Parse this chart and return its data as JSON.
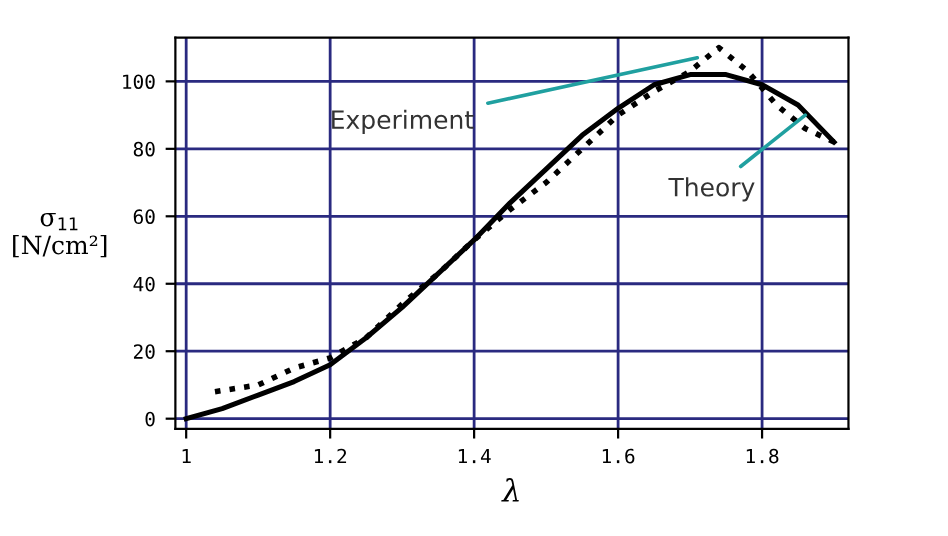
{
  "chart_data": {
    "type": "line",
    "xlabel": "λ",
    "ylabel": "σ$_{11}$\n[N/cm²]",
    "xlim": [
      0.985,
      1.92
    ],
    "ylim": [
      -3,
      113
    ],
    "xticks": [
      1,
      1.2,
      1.4,
      1.6,
      1.8
    ],
    "yticks": [
      0,
      20,
      40,
      60,
      80,
      100
    ],
    "grid": true,
    "series": [
      {
        "color": "#000000",
        "line_style": "solid",
        "x": [
          1,
          1.05,
          1.1,
          1.15,
          1.2,
          1.25,
          1.3,
          1.35,
          1.4,
          1.45,
          1.5,
          1.55,
          1.6,
          1.65,
          1.7,
          1.75,
          1.8,
          1.85,
          1.9
        ],
        "values": [
          0,
          3,
          7,
          11,
          16,
          24,
          33,
          43,
          53,
          64,
          74,
          84,
          92,
          99,
          102,
          102,
          99,
          93,
          82
        ]
      },
      {
        "color": "#000000",
        "line_style": "dotted",
        "x": [
          1.04,
          1.07,
          1.1,
          1.15,
          1.2,
          1.25,
          1.3,
          1.35,
          1.4,
          1.45,
          1.5,
          1.55,
          1.6,
          1.65,
          1.7,
          1.74,
          1.78,
          1.82,
          1.86,
          1.9
        ],
        "values": [
          8,
          9,
          10,
          15,
          18,
          24,
          34,
          43,
          53,
          62,
          70,
          80,
          90,
          97,
          103,
          110,
          103,
          93,
          86,
          82
        ]
      }
    ],
    "annotations": [
      {
        "text": "Experiment",
        "x": 1.71,
        "y": 107
      },
      {
        "text": "Theory",
        "x": 1.86,
        "y": 90
      }
    ]
  }
}
